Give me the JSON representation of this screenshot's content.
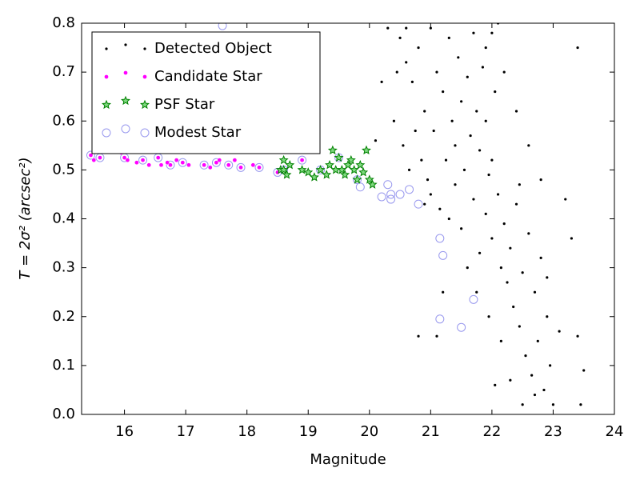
{
  "chart_data": {
    "type": "scatter",
    "xlabel": "Magnitude",
    "ylabel": "T = 2σ² (arcsec²)",
    "xlim": [
      15.3,
      24
    ],
    "ylim": [
      0,
      0.8
    ],
    "xticks": [
      16,
      17,
      18,
      19,
      20,
      21,
      22,
      23,
      24
    ],
    "yticks": [
      {
        "value": 0,
        "label": "0.0"
      },
      {
        "value": 0.1,
        "label": "0.1"
      },
      {
        "value": 0.2,
        "label": "0.2"
      },
      {
        "value": 0.3,
        "label": "0.3"
      },
      {
        "value": 0.4,
        "label": "0.4"
      },
      {
        "value": 0.5,
        "label": "0.5"
      },
      {
        "value": 0.6,
        "label": "0.6"
      },
      {
        "value": 0.7,
        "label": "0.7"
      },
      {
        "value": 0.8,
        "label": "0.8"
      }
    ],
    "legend": "upper left",
    "series": [
      {
        "name": "Detected Object",
        "color": "#000000",
        "marker": "dot",
        "x": [
          20.3,
          20.5,
          20.6,
          20.7,
          20.8,
          20.9,
          21.0,
          21.05,
          21.1,
          21.2,
          21.25,
          21.3,
          21.35,
          21.4,
          21.45,
          21.5,
          21.55,
          21.6,
          21.65,
          21.7,
          21.75,
          21.8,
          21.85,
          21.9,
          21.95,
          22.0,
          22.05,
          20.4,
          20.55,
          20.65,
          20.75,
          20.85,
          20.95,
          21.0,
          21.15,
          21.3,
          21.5,
          21.7,
          21.8,
          21.9,
          22.0,
          22.1,
          22.15,
          22.2,
          22.25,
          22.3,
          22.35,
          22.4,
          22.45,
          22.5,
          22.55,
          22.6,
          22.65,
          22.7,
          22.75,
          22.8,
          22.85,
          22.9,
          22.95,
          23.0,
          23.1,
          23.2,
          23.3,
          23.4,
          23.45,
          23.5,
          23.4,
          22.8,
          22.6,
          22.4,
          22.2,
          22.1,
          21.1,
          20.8,
          21.2,
          21.6,
          21.95,
          22.05,
          22.3,
          22.5,
          22.7,
          20.2,
          20.1,
          20.45,
          20.6,
          21.9,
          21.4,
          20.9,
          22.0,
          21.75,
          22.15,
          22.45,
          22.9
        ],
        "values": [
          0.79,
          0.77,
          0.72,
          0.68,
          0.75,
          0.62,
          0.79,
          0.58,
          0.7,
          0.66,
          0.52,
          0.77,
          0.6,
          0.55,
          0.73,
          0.64,
          0.5,
          0.69,
          0.57,
          0.78,
          0.62,
          0.54,
          0.71,
          0.6,
          0.49,
          0.78,
          0.66,
          0.6,
          0.55,
          0.5,
          0.58,
          0.52,
          0.48,
          0.45,
          0.42,
          0.4,
          0.38,
          0.44,
          0.33,
          0.41,
          0.36,
          0.45,
          0.3,
          0.39,
          0.27,
          0.34,
          0.22,
          0.43,
          0.18,
          0.29,
          0.12,
          0.37,
          0.08,
          0.25,
          0.15,
          0.32,
          0.05,
          0.2,
          0.1,
          0.02,
          0.17,
          0.44,
          0.36,
          0.16,
          0.02,
          0.09,
          0.75,
          0.48,
          0.55,
          0.62,
          0.7,
          0.8,
          0.16,
          0.16,
          0.25,
          0.3,
          0.2,
          0.06,
          0.07,
          0.02,
          0.04,
          0.68,
          0.56,
          0.7,
          0.79,
          0.75,
          0.47,
          0.43,
          0.52,
          0.25,
          0.15,
          0.47,
          0.28
        ]
      },
      {
        "name": "Candidate Star",
        "color": "#ff00ff",
        "marker": "dot-large",
        "x": [
          15.45,
          15.5,
          15.6,
          15.95,
          16.0,
          16.05,
          16.2,
          16.3,
          16.4,
          16.55,
          16.6,
          16.7,
          16.75,
          16.85,
          16.95,
          17.05,
          17.3,
          17.4,
          17.5,
          17.55,
          17.7,
          17.8,
          17.9,
          18.1,
          18.2,
          18.5,
          18.6,
          18.9
        ],
        "values": [
          0.53,
          0.52,
          0.525,
          0.535,
          0.525,
          0.52,
          0.515,
          0.52,
          0.51,
          0.525,
          0.51,
          0.515,
          0.51,
          0.52,
          0.515,
          0.51,
          0.51,
          0.505,
          0.515,
          0.52,
          0.51,
          0.52,
          0.505,
          0.51,
          0.505,
          0.495,
          0.5,
          0.52
        ]
      },
      {
        "name": "PSF Star",
        "color": "#008000",
        "marker": "star",
        "x": [
          18.55,
          18.6,
          18.65,
          18.7,
          18.9,
          19.0,
          19.1,
          19.2,
          19.3,
          19.35,
          19.4,
          19.5,
          19.55,
          19.6,
          19.7,
          19.75,
          19.8,
          19.85,
          19.9,
          19.95,
          20.0,
          20.05,
          19.45,
          19.65,
          18.6
        ],
        "values": [
          0.5,
          0.52,
          0.49,
          0.51,
          0.5,
          0.495,
          0.485,
          0.5,
          0.49,
          0.51,
          0.54,
          0.525,
          0.5,
          0.49,
          0.52,
          0.5,
          0.48,
          0.51,
          0.495,
          0.54,
          0.48,
          0.47,
          0.5,
          0.51,
          0.5
        ]
      },
      {
        "name": "Modest Star",
        "color": "#9999ee",
        "marker": "ring",
        "x": [
          15.45,
          15.6,
          15.9,
          16.0,
          16.3,
          16.55,
          16.75,
          16.95,
          17.3,
          17.5,
          17.7,
          17.9,
          18.2,
          18.5,
          18.6,
          18.9,
          19.2,
          19.5,
          19.8,
          19.85,
          20.2,
          20.3,
          20.35,
          20.35,
          20.5,
          20.65,
          20.8,
          21.15,
          21.2,
          21.15,
          21.5,
          21.7,
          17.6
        ],
        "values": [
          0.53,
          0.525,
          0.58,
          0.525,
          0.52,
          0.525,
          0.51,
          0.515,
          0.51,
          0.515,
          0.51,
          0.505,
          0.505,
          0.495,
          0.5,
          0.52,
          0.5,
          0.525,
          0.48,
          0.465,
          0.445,
          0.47,
          0.44,
          0.45,
          0.45,
          0.46,
          0.43,
          0.36,
          0.325,
          0.195,
          0.178,
          0.235,
          0.795
        ]
      }
    ]
  }
}
